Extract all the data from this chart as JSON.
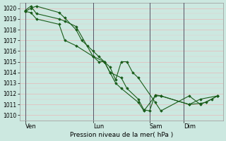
{
  "background_color": "#cce8e0",
  "grid_color_major": "#e8b8b8",
  "grid_color_minor": "#e8c8c8",
  "line_color": "#1a5c1a",
  "marker_color": "#1a5c1a",
  "xlabel": "Pression niveau de la mer( hPa )",
  "ylim": [
    1009.5,
    1020.5
  ],
  "yticks": [
    1010,
    1011,
    1012,
    1013,
    1014,
    1015,
    1016,
    1017,
    1018,
    1019,
    1020
  ],
  "xtick_labels": [
    "Ven",
    "Lun",
    "Sam",
    "Dim"
  ],
  "vline_color": "#555566",
  "series": [
    {
      "x": [
        0,
        0.5,
        1.0,
        3.0,
        3.5,
        4.5,
        5.0,
        5.5,
        6.0,
        6.5,
        7.0,
        7.5,
        8.0,
        8.5,
        9.0,
        9.5,
        10.0,
        11.5,
        12.0,
        14.5,
        15.5,
        16.5,
        17.0
      ],
      "y": [
        1019.7,
        1020.0,
        1020.2,
        1019.6,
        1019.1,
        1018.0,
        1017.0,
        1016.5,
        1016.0,
        1015.5,
        1015.0,
        1014.5,
        1013.3,
        1015.0,
        1015.0,
        1014.0,
        1013.5,
        1011.2,
        1010.4,
        1011.8,
        1011.0,
        1011.5,
        1011.8
      ]
    },
    {
      "x": [
        0,
        0.5,
        1.0,
        3.0,
        3.5,
        4.5,
        6.0,
        6.5,
        7.0,
        7.5,
        8.5,
        9.0,
        10.0,
        10.5,
        11.0,
        11.5,
        12.0,
        14.5,
        15.5,
        16.0,
        17.0
      ],
      "y": [
        1019.8,
        1020.2,
        1019.5,
        1019.0,
        1018.8,
        1018.3,
        1015.5,
        1015.0,
        1015.0,
        1014.0,
        1013.5,
        1012.5,
        1011.5,
        1010.5,
        1010.4,
        1011.9,
        1011.8,
        1011.0,
        1011.1,
        1011.2,
        1011.8
      ]
    },
    {
      "x": [
        0,
        0.5,
        1.0,
        3.0,
        3.5,
        4.5,
        6.0,
        7.0,
        7.5,
        8.0,
        8.5,
        10.0,
        10.5,
        11.5,
        12.0,
        14.5,
        15.5,
        17.0
      ],
      "y": [
        1019.7,
        1019.6,
        1019.0,
        1018.5,
        1017.0,
        1016.5,
        1015.5,
        1015.0,
        1014.0,
        1013.0,
        1012.5,
        1011.2,
        1010.4,
        1011.8,
        1011.8,
        1011.0,
        1011.5,
        1011.8
      ]
    }
  ],
  "vlines": [
    0,
    6.0,
    11.0,
    14.0
  ],
  "xlim": [
    -0.5,
    17.5
  ],
  "xtick_pos": [
    0,
    6.0,
    11.0,
    14.0
  ],
  "figsize": [
    3.2,
    2.0
  ],
  "dpi": 100
}
